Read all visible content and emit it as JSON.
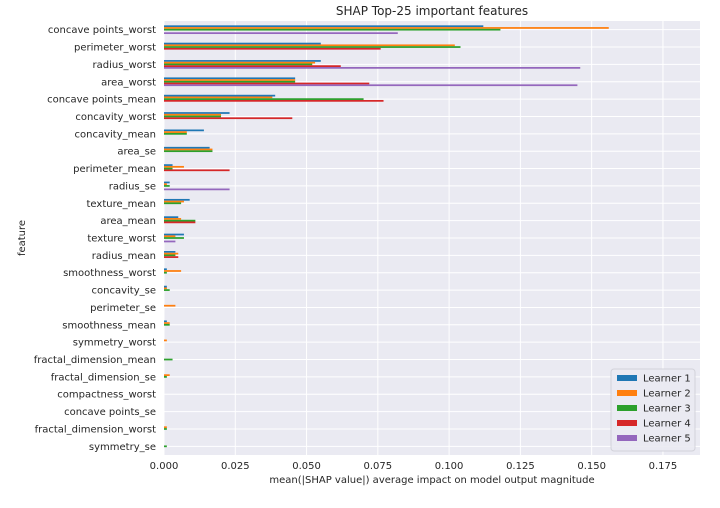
{
  "chart_data": {
    "type": "bar",
    "orientation": "horizontal",
    "title": "SHAP Top-25 important features",
    "xlabel": "mean(|SHAP value|) average impact on model output magnitude",
    "ylabel": "feature",
    "xlim": [
      0,
      0.188
    ],
    "xticks": [
      0.0,
      0.025,
      0.05,
      0.075,
      0.1,
      0.125,
      0.15,
      0.175
    ],
    "xtick_labels": [
      "0.000",
      "0.025",
      "0.050",
      "0.075",
      "0.100",
      "0.125",
      "0.150",
      "0.175"
    ],
    "grid": true,
    "legend_position": "lower-right",
    "categories": [
      "concave points_worst",
      "perimeter_worst",
      "radius_worst",
      "area_worst",
      "concave points_mean",
      "concavity_worst",
      "concavity_mean",
      "area_se",
      "perimeter_mean",
      "radius_se",
      "texture_mean",
      "area_mean",
      "texture_worst",
      "radius_mean",
      "smoothness_worst",
      "concavity_se",
      "perimeter_se",
      "smoothness_mean",
      "symmetry_worst",
      "fractal_dimension_mean",
      "fractal_dimension_se",
      "compactness_worst",
      "concave points_se",
      "fractal_dimension_worst",
      "symmetry_se"
    ],
    "series": [
      {
        "name": "Learner 1",
        "color": "#1f77b4",
        "values": [
          0.112,
          0.055,
          0.055,
          0.046,
          0.039,
          0.023,
          0.014,
          0.016,
          0.003,
          0.002,
          0.009,
          0.005,
          0.007,
          0.004,
          0.001,
          0.001,
          0.0,
          0.001,
          0.0,
          0.0,
          0.0,
          0.0,
          0.0,
          0.0,
          0.0
        ]
      },
      {
        "name": "Learner 2",
        "color": "#ff7f0e",
        "values": [
          0.156,
          0.102,
          0.053,
          0.046,
          0.038,
          0.02,
          0.008,
          0.017,
          0.007,
          0.001,
          0.007,
          0.006,
          0.004,
          0.005,
          0.006,
          0.001,
          0.004,
          0.002,
          0.001,
          0.0,
          0.002,
          0.0,
          0.0,
          0.001,
          0.0
        ]
      },
      {
        "name": "Learner 3",
        "color": "#2ca02c",
        "values": [
          0.118,
          0.104,
          0.052,
          0.046,
          0.07,
          0.02,
          0.008,
          0.017,
          0.003,
          0.002,
          0.006,
          0.011,
          0.007,
          0.004,
          0.001,
          0.002,
          0.0,
          0.002,
          0.0,
          0.003,
          0.001,
          0.0,
          0.0,
          0.001,
          0.001
        ]
      },
      {
        "name": "Learner 4",
        "color": "#d62728",
        "values": [
          0.0,
          0.076,
          0.062,
          0.072,
          0.077,
          0.045,
          0.0,
          0.0,
          0.023,
          0.0,
          0.0,
          0.011,
          0.0,
          0.005,
          0.0,
          0.0,
          0.0,
          0.0,
          0.0,
          0.0,
          0.0,
          0.0,
          0.0,
          0.0,
          0.0
        ]
      },
      {
        "name": "Learner 5",
        "color": "#9467bd",
        "values": [
          0.082,
          0.0,
          0.146,
          0.145,
          0.0,
          0.0,
          0.0,
          0.0,
          0.0,
          0.023,
          0.0,
          0.0,
          0.004,
          0.0,
          0.0,
          0.0,
          0.0,
          0.0,
          0.0,
          0.0,
          0.0,
          0.0,
          0.0,
          0.0,
          0.0
        ]
      }
    ]
  }
}
